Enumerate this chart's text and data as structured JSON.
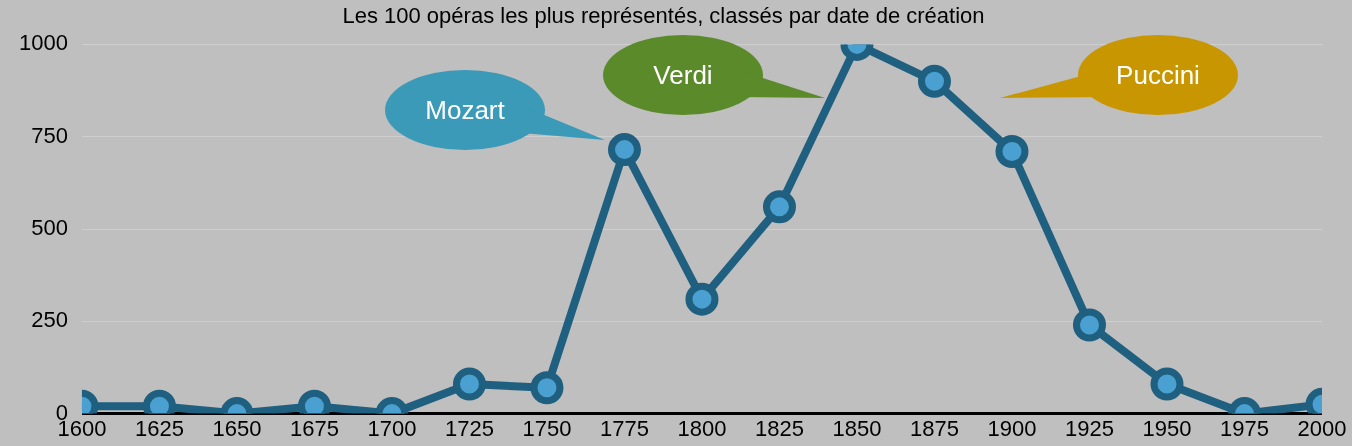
{
  "chart_data": {
    "type": "line",
    "title": "Les 100 opéras les plus représentés, classés par date de création",
    "x": [
      1600,
      1625,
      1650,
      1675,
      1700,
      1725,
      1750,
      1775,
      1800,
      1825,
      1850,
      1875,
      1900,
      1925,
      1950,
      1975,
      2000
    ],
    "series": [
      {
        "color": "#1f5f80",
        "values": [
          20,
          20,
          0,
          20,
          0,
          80,
          70,
          715,
          310,
          560,
          1000,
          900,
          710,
          240,
          80,
          0,
          25
        ]
      }
    ],
    "xlim": [
      1600,
      2000
    ],
    "xticks": [
      1600,
      1625,
      1650,
      1675,
      1700,
      1725,
      1750,
      1775,
      1800,
      1825,
      1850,
      1875,
      1900,
      1925,
      1950,
      1975,
      2000
    ],
    "ylim": [
      0,
      1000
    ],
    "yticks": [
      0,
      250,
      500,
      750,
      1000
    ],
    "grid": "y",
    "legend": false,
    "marker": "circle",
    "line_style": "solid",
    "annotations": [
      "Mozart",
      "Verdi",
      "Puccini"
    ]
  }
}
